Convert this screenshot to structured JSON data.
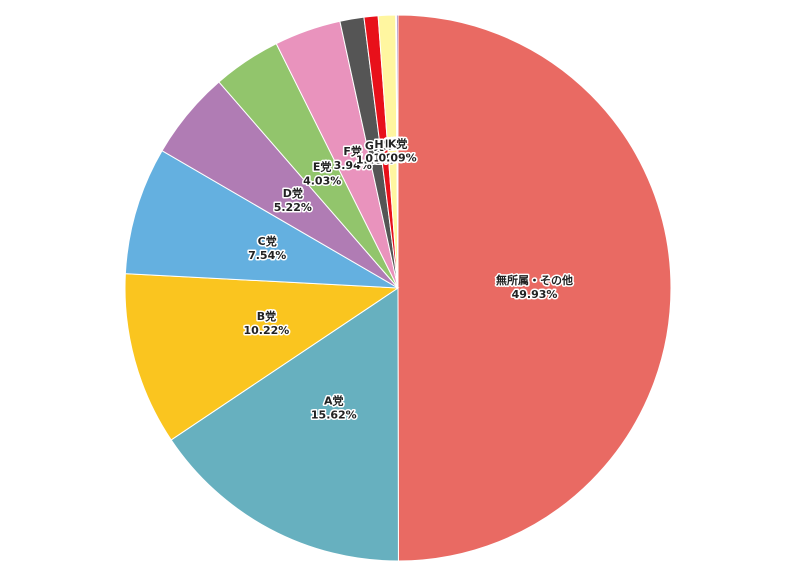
{
  "chart_data": {
    "type": "pie",
    "categories": [
      "無所属・その他",
      "A党",
      "B党",
      "C党",
      "D党",
      "E党",
      "F党",
      "G党",
      "H党",
      "I党",
      "J党",
      "K党"
    ],
    "values": [
      49.93,
      15.62,
      10.22,
      7.54,
      5.22,
      4.03,
      3.94,
      1.42,
      0.83,
      1.03,
      0.04,
      0.09
    ],
    "value_labels": [
      "49.93%",
      "15.62%",
      "10.22%",
      "7.54%",
      "5.22%",
      "4.03%",
      "3.94%",
      "1.42%",
      "0.83%",
      "1.03%",
      "0.04%",
      "0.09%"
    ],
    "colors": [
      "#e96a63",
      "#67b0bf",
      "#fac51f",
      "#64b0e0",
      "#b07cb4",
      "#92c56c",
      "#e993bd",
      "#555555",
      "#e8101a",
      "#fff6a0",
      "#5a6ab0",
      "#7a4fa0"
    ]
  }
}
